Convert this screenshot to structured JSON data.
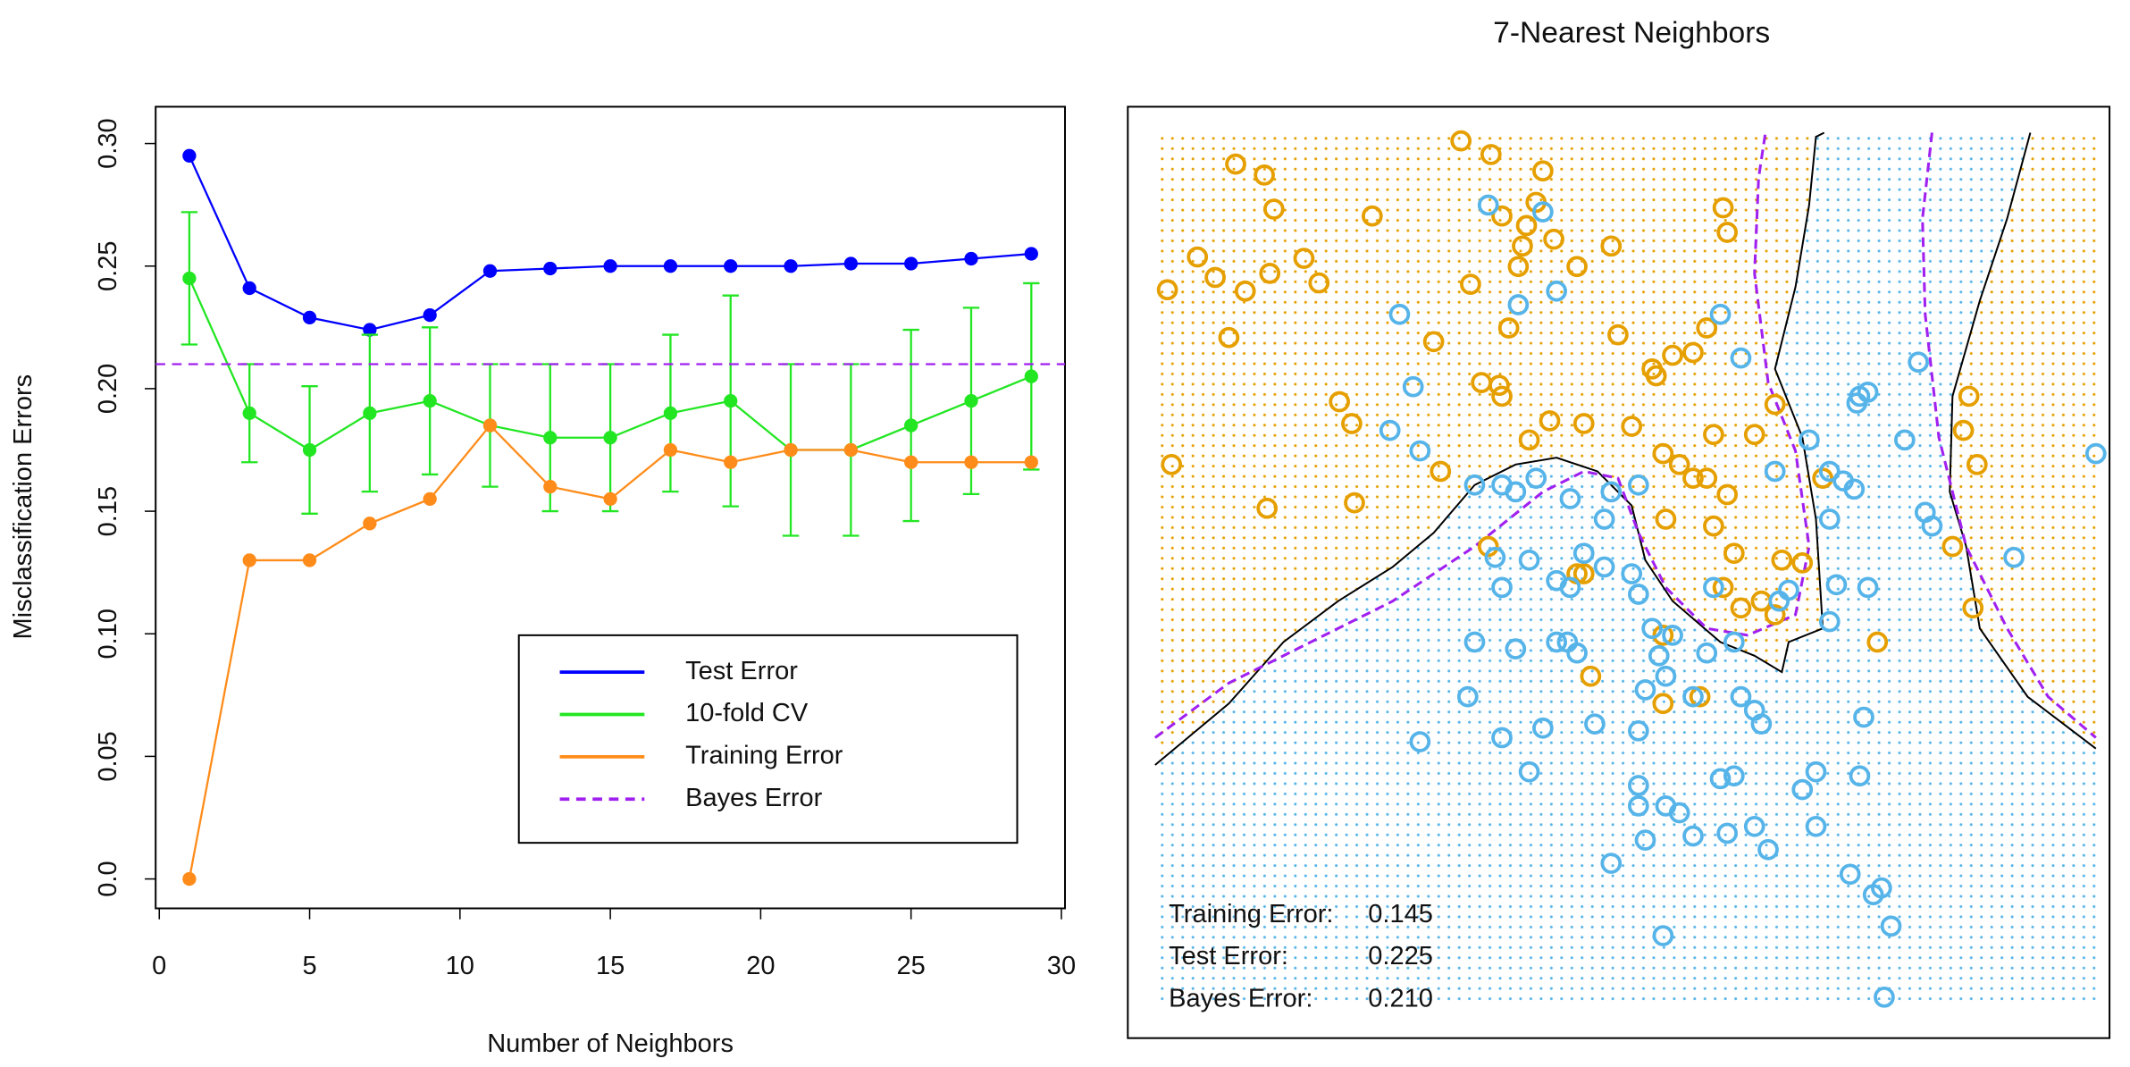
{
  "chart_data": [
    {
      "type": "line",
      "xlabel": "Number of Neighbors",
      "ylabel": "Misclassification Errors",
      "x": [
        1,
        3,
        5,
        7,
        9,
        11,
        13,
        15,
        17,
        19,
        21,
        23,
        25,
        27,
        29
      ],
      "series": [
        {
          "name": "Test Error",
          "color": "#0000ff",
          "values": [
            0.295,
            0.241,
            0.229,
            0.224,
            0.23,
            0.248,
            0.249,
            0.25,
            0.25,
            0.25,
            0.25,
            0.251,
            0.251,
            0.253,
            0.255
          ]
        },
        {
          "name": "10-fold CV",
          "color": "#22e622",
          "values": [
            0.245,
            0.19,
            0.175,
            0.19,
            0.195,
            0.185,
            0.18,
            0.18,
            0.19,
            0.195,
            0.175,
            0.175,
            0.185,
            0.195,
            0.205
          ],
          "errors": [
            0.027,
            0.02,
            0.026,
            0.032,
            0.03,
            0.025,
            0.03,
            0.03,
            0.032,
            0.043,
            0.035,
            0.035,
            0.039,
            0.038,
            0.038
          ]
        },
        {
          "name": "Training Error",
          "color": "#ff8c1a",
          "values": [
            0.0,
            0.13,
            0.13,
            0.145,
            0.155,
            0.185,
            0.16,
            0.155,
            0.175,
            0.17,
            0.175,
            0.175,
            0.17,
            0.17,
            0.17
          ]
        },
        {
          "name": "Bayes Error",
          "color": "#a020f0",
          "dashed": true,
          "value": 0.21
        }
      ],
      "xlim": [
        -0.12,
        30.12
      ],
      "ylim": [
        -0.012,
        0.315
      ],
      "xticks": [
        0,
        5,
        10,
        15,
        20,
        25,
        30
      ],
      "yticks": [
        {
          "value": 0,
          "label": "0.0"
        },
        0.05,
        {
          "value": 0.1,
          "label": "0.10"
        },
        0.15,
        {
          "value": 0.2,
          "label": "0.20"
        },
        0.25,
        {
          "value": 0.3,
          "label": "0.30"
        }
      ],
      "legend": "bottom-right"
    },
    {
      "type": "scatter",
      "title": "7-Nearest Neighbors",
      "xlim": [
        0,
        690
      ],
      "ylim": [
        0,
        638
      ],
      "classes": [
        {
          "color": "#e69f00",
          "x": [
            9,
            12,
            31,
            44,
            54,
            59,
            66,
            82,
            84,
            80,
            87,
            109,
            120,
            135,
            144,
            146,
            159,
            204,
            209,
            224,
            231,
            239,
            246,
            252,
            254,
            254,
            259,
            266,
            269,
            272,
            274,
            279,
            284,
            289,
            292,
            309,
            314,
            334,
            339,
            349,
            364,
            367,
            372,
            374,
            379,
            394,
            394,
            404,
            409,
            409,
            416,
            419,
            424,
            429,
            416,
            439,
            454,
            459,
            474,
            489,
            314,
            372,
            372,
            399,
            584,
            592,
            596,
            602,
            599,
            529,
            319,
            244,
            309,
            384,
            404,
            419,
            444,
            454
          ],
          "y": [
            523,
            395,
            547,
            532,
            488,
            615,
            522,
            363,
            535,
            607,
            582,
            546,
            528,
            441,
            425,
            367,
            577,
            485,
            390,
            632,
            527,
            455,
            622,
            453,
            577,
            445,
            495,
            540,
            555,
            570,
            413,
            587,
            610,
            427,
            560,
            540,
            425,
            555,
            490,
            423,
            465,
            460,
            403,
            355,
            475,
            477,
            385,
            495,
            350,
            417,
            583,
            565,
            330,
            290,
            305,
            417,
            439,
            325,
            323,
            385,
            315,
            270,
            220,
            225,
            335,
            420,
            445,
            395,
            290,
            265,
            240,
            335,
            315,
            395,
            385,
            373,
            295,
            285
          ]
        },
        {
          "color": "#56b4e9",
          "x": [
            244,
            284,
            294,
            266,
            179,
            189,
            172,
            194,
            234,
            254,
            264,
            279,
            304,
            329,
            334,
            354,
            249,
            274,
            254,
            294,
            304,
            314,
            329,
            349,
            354,
            364,
            379,
            369,
            374,
            359,
            394,
            404,
            409,
            429,
            439,
            444,
            424,
            294,
            302,
            309,
            264,
            234,
            229,
            194,
            254,
            284,
            322,
            354,
            274,
            354,
            354,
            374,
            384,
            359,
            394,
            419,
            414,
            424,
            439,
            449,
            474,
            484,
            484,
            519,
            516,
            509,
            526,
            532,
            539,
            534,
            372,
            334,
            429,
            414,
            454,
            479,
            494,
            504,
            512,
            514,
            516,
            522,
            549,
            559,
            564,
            569,
            629,
            689,
            499,
            522,
            494,
            457,
            494,
            464
          ],
          "y": [
            585,
            580,
            522,
            512,
            505,
            452,
            420,
            405,
            380,
            380,
            375,
            385,
            370,
            355,
            375,
            380,
            327,
            325,
            305,
            310,
            305,
            330,
            320,
            315,
            300,
            275,
            270,
            255,
            240,
            230,
            225,
            257,
            305,
            225,
            215,
            205,
            265,
            265,
            265,
            257,
            260,
            265,
            225,
            192,
            195,
            202,
            205,
            200,
            170,
            160,
            145,
            145,
            140,
            120,
            123,
            125,
            165,
            167,
            130,
            113,
            157,
            130,
            170,
            210,
            167,
            95,
            80,
            85,
            57,
            5,
            50,
            103,
            473,
            505,
            390,
            413,
            390,
            383,
            377,
            440,
            445,
            448,
            413,
            470,
            360,
            350,
            327,
            403,
            307,
            305,
            280,
            295,
            355,
            303
          ]
        }
      ],
      "boundaries": [
        {
          "color": "#000000",
          "x": [
            0,
            54,
            94,
            134,
            174,
            204,
            234,
            264,
            294,
            324,
            349,
            359,
            379,
            414,
            439,
            459,
            464,
            489,
            484,
            474,
            454,
            469,
            479,
            484,
            490
          ],
          "y": [
            175,
            220,
            265,
            295,
            320,
            345,
            380,
            395,
            400,
            390,
            365,
            325,
            295,
            265,
            255,
            243,
            265,
            275,
            355,
            415,
            465,
            525,
            585,
            635,
            638
          ]
        },
        {
          "color": "#000000",
          "x": [
            641,
            624,
            604,
            584,
            582,
            594,
            604,
            639,
            689
          ],
          "y": [
            638,
            575,
            515,
            445,
            375,
            335,
            275,
            225,
            187
          ]
        },
        {
          "color": "#a020f0",
          "dashed": true,
          "x": [
            0,
            54,
            114,
            174,
            234,
            284,
            314,
            339,
            354,
            374,
            404,
            434,
            469,
            479,
            469,
            449,
            439,
            442,
            447
          ],
          "y": [
            195,
            235,
            265,
            295,
            335,
            375,
            390,
            385,
            345,
            305,
            275,
            270,
            285,
            335,
            405,
            455,
            535,
            605,
            638
          ]
        },
        {
          "color": "#a020f0",
          "dashed": true,
          "x": [
            569,
            562,
            564,
            574,
            594,
            624,
            654,
            689
          ],
          "y": [
            638,
            575,
            505,
            415,
            335,
            275,
            225,
            195
          ]
        }
      ],
      "stats": [
        {
          "label": "Training Error:",
          "value": "0.145"
        },
        {
          "label": "Test Error:",
          "value": "0.225"
        },
        {
          "label": "Bayes Error:",
          "value": "0.210"
        }
      ]
    }
  ]
}
